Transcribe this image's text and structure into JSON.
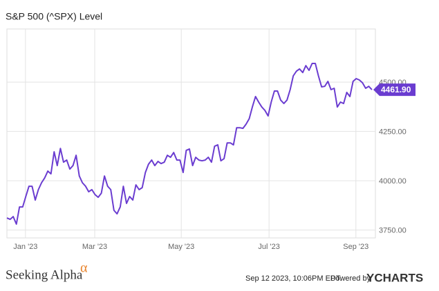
{
  "chart_data": {
    "type": "line",
    "title": "S&P 500 (^SPX) Level",
    "series": [
      {
        "name": "S&P 500 (^SPX) Level",
        "color": "#6a3cd0",
        "values": [
          3811,
          3804,
          3818,
          3780,
          3867,
          3867,
          3920,
          3972,
          3972,
          3902,
          3955,
          3990,
          4014,
          4049,
          4035,
          4147,
          4077,
          4164,
          4094,
          4105,
          4059,
          4077,
          4129,
          4024,
          3990,
          3972,
          3944,
          3955,
          3930,
          3916,
          3937,
          4024,
          3972,
          3955,
          3850,
          3832,
          3867,
          3972,
          3885,
          3920,
          3902,
          3979,
          3955,
          3965,
          4042,
          4084,
          4105,
          4077,
          4098,
          4087,
          4094,
          4129,
          4119,
          4143,
          4105,
          4105,
          4042,
          4154,
          4161,
          4077,
          4119,
          4105,
          4101,
          4105,
          4119,
          4094,
          4175,
          4182,
          4101,
          4112,
          4192,
          4192,
          4182,
          4269,
          4269,
          4266,
          4287,
          4315,
          4374,
          4427,
          4399,
          4374,
          4357,
          4329,
          4399,
          4455,
          4455,
          4409,
          4392,
          4409,
          4462,
          4532,
          4556,
          4567,
          4549,
          4584,
          4560,
          4595,
          4595,
          4532,
          4476,
          4479,
          4504,
          4462,
          4469,
          4374,
          4399,
          4392,
          4448,
          4427,
          4504,
          4518,
          4511,
          4497,
          4469,
          4479,
          4461.9
        ],
        "value_labels": [
          null,
          null,
          null,
          null,
          null,
          null,
          null,
          null,
          null,
          null,
          null,
          null,
          null,
          null,
          null,
          null,
          null,
          null,
          null,
          null,
          null,
          null,
          null,
          null,
          null,
          null,
          null,
          null,
          null,
          null,
          null,
          null,
          null,
          null,
          null,
          null,
          null,
          null,
          null,
          null,
          null,
          null,
          null,
          null,
          null,
          null,
          null,
          null,
          null,
          null,
          null,
          null,
          null,
          null,
          null,
          null,
          null,
          null,
          null,
          null,
          null,
          null,
          null,
          null,
          null,
          null,
          null,
          null,
          null,
          null,
          null,
          null,
          null,
          null,
          null,
          null,
          null,
          null,
          null,
          null,
          null,
          null,
          null,
          null,
          null,
          null,
          null,
          null,
          null,
          null,
          null,
          null,
          null,
          null,
          null,
          null,
          null,
          null,
          null,
          null,
          null,
          null,
          null,
          null,
          null,
          null,
          null,
          null,
          null,
          null,
          null,
          null,
          null,
          null,
          null,
          null,
          "4461.90"
        ]
      }
    ],
    "xlim": [
      0,
      116
    ],
    "xticks": [
      {
        "value": 5.9,
        "label": "Jan '23"
      },
      {
        "value": 27.9,
        "label": "Mar '23"
      },
      {
        "value": 55.4,
        "label": "May '23"
      },
      {
        "value": 83.3,
        "label": "Jul '23"
      },
      {
        "value": 110.9,
        "label": "Sep '23"
      }
    ],
    "ylim": [
      3710,
      4770
    ],
    "yticks": [
      {
        "value": 3750,
        "label": "3750.00"
      },
      {
        "value": 4000,
        "label": "4000.00"
      },
      {
        "value": 4250,
        "label": "4250.00"
      },
      {
        "value": 4500,
        "label": "4500.00"
      }
    ],
    "grid": true
  },
  "footer": {
    "brand": "Seeking Alpha",
    "brand_symbol": "α",
    "timestamp": "Sep 12 2023, 10:06PM EDT.",
    "powered": "Powered by",
    "provider": "YCHARTS"
  }
}
